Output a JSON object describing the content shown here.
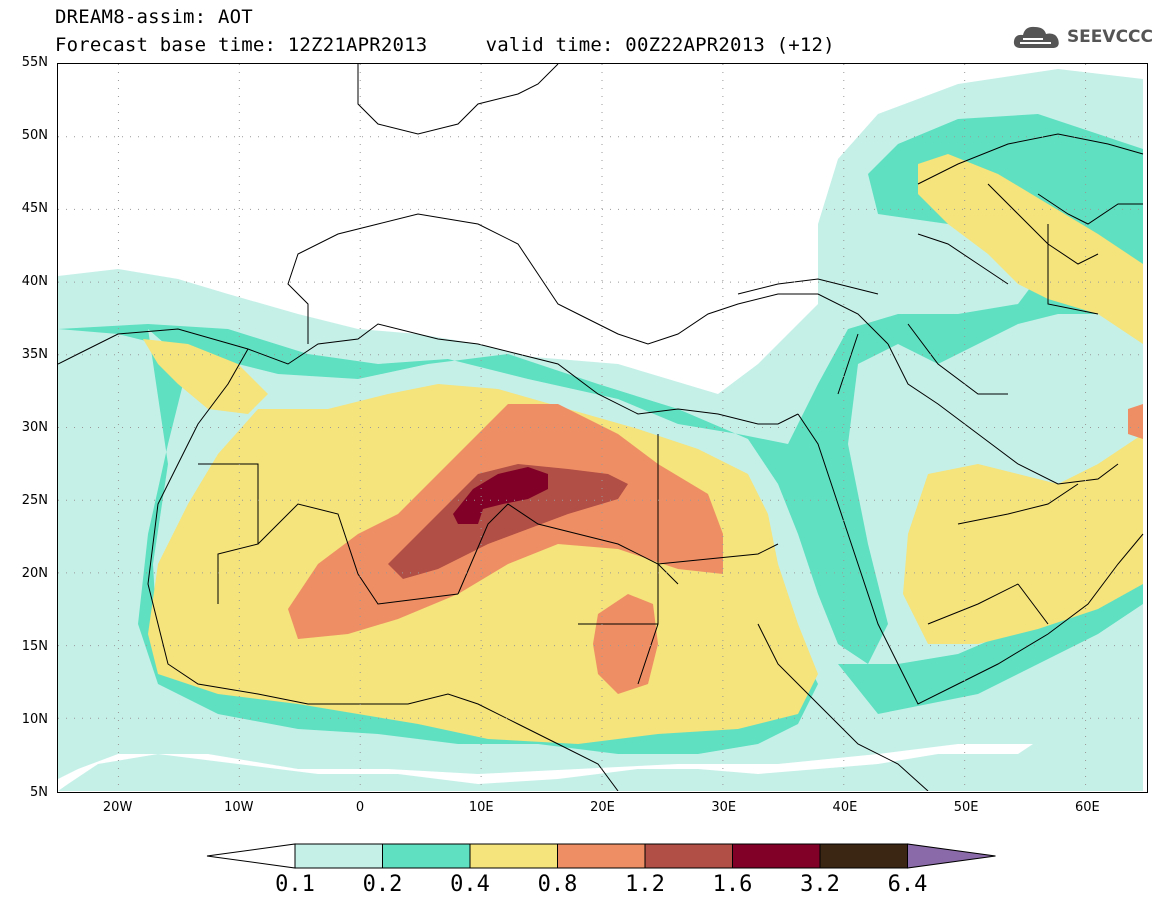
{
  "header": {
    "title_line1": "DREAM8-assim: AOT",
    "title_line2": "Forecast base time: 12Z21APR2013     valid time: 00Z22APR2013 (+12)",
    "logo_text": "SEEVCCC",
    "logo_icon": "cloud-icon"
  },
  "map": {
    "lat_range": [
      "5N",
      "55N"
    ],
    "lon_range": [
      "25W",
      "65E"
    ],
    "grid": true,
    "lat_labels": [
      "55N",
      "50N",
      "45N",
      "40N",
      "35N",
      "30N",
      "25N",
      "20N",
      "15N",
      "10N",
      "5N"
    ],
    "lon_labels": [
      "20W",
      "10W",
      "0",
      "10E",
      "20E",
      "30E",
      "40E",
      "50E",
      "60E"
    ],
    "max_region": "Southern Algeria / Libya border (~25N, 12E)"
  },
  "legend": {
    "levels": [
      "0.1",
      "0.2",
      "0.4",
      "0.8",
      "1.2",
      "1.6",
      "3.2",
      "6.4"
    ],
    "colors": [
      "#ffffff",
      "#c5f0e8",
      "#5fe0c1",
      "#f5e37b",
      "#ee8e64",
      "#b14e45",
      "#800027",
      "#3b2614",
      "#8a6aa8"
    ]
  }
}
